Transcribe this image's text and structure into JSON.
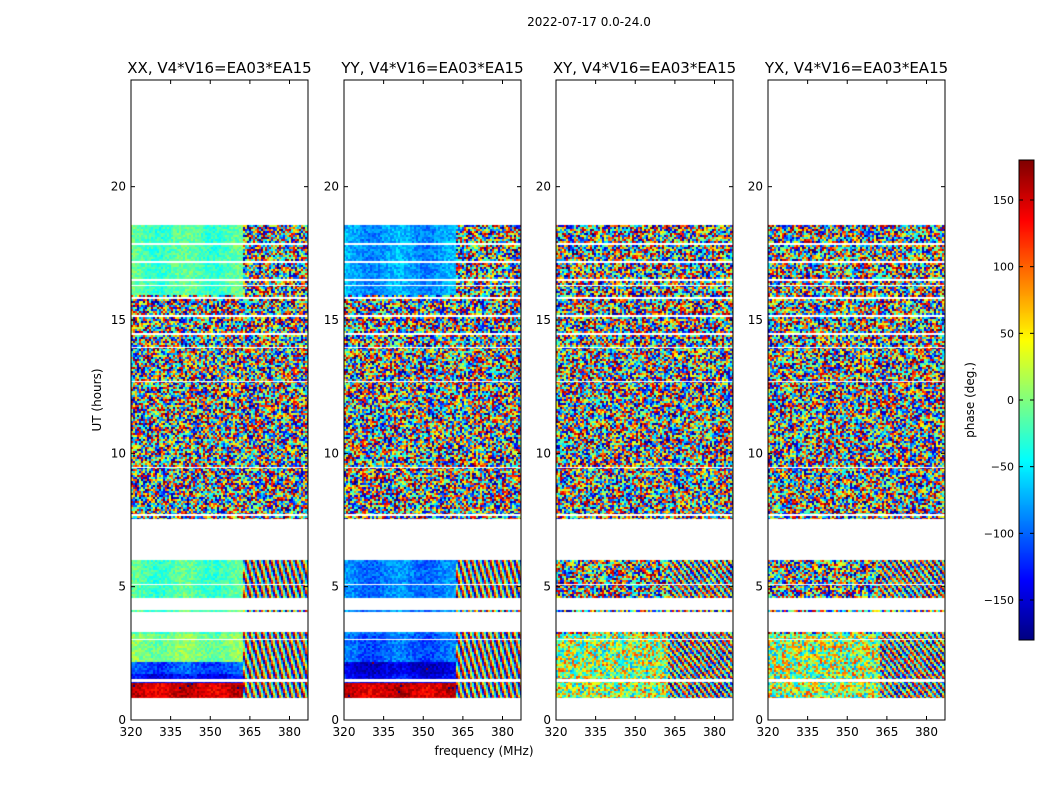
{
  "suptitle": "2022-07-17 0.0-24.0",
  "chart_data": {
    "type": "heatmap",
    "xlabel": "frequency (MHz)",
    "ylabel": "UT (hours)",
    "xlim": [
      320,
      387
    ],
    "ylim": [
      0,
      24
    ],
    "xticks": [
      320,
      335,
      350,
      365,
      380
    ],
    "yticks": [
      0,
      5,
      10,
      15,
      20
    ],
    "colorbar": {
      "label": "phase (deg.)",
      "range": [
        -180,
        180
      ],
      "ticks": [
        -150,
        -100,
        -50,
        0,
        50,
        100,
        150
      ],
      "colormap": "jet"
    },
    "time_blocks_hours": [
      [
        0.85,
        1.45
      ],
      [
        1.55,
        3.3
      ],
      [
        4.05,
        4.12
      ],
      [
        4.6,
        6.0
      ],
      [
        7.55,
        7.62
      ],
      [
        7.75,
        18.55
      ]
    ],
    "freq_transition_mhz": 362,
    "panels": [
      {
        "title": "XX, V4*V16=EA03*EA15",
        "mode": "coherent"
      },
      {
        "title": "YY, V4*V16=EA03*EA15",
        "mode": "coherent"
      },
      {
        "title": "XY, V4*V16=EA03*EA15",
        "mode": "noise"
      },
      {
        "title": "YX, V4*V16=EA03*EA15",
        "mode": "noise"
      }
    ]
  }
}
